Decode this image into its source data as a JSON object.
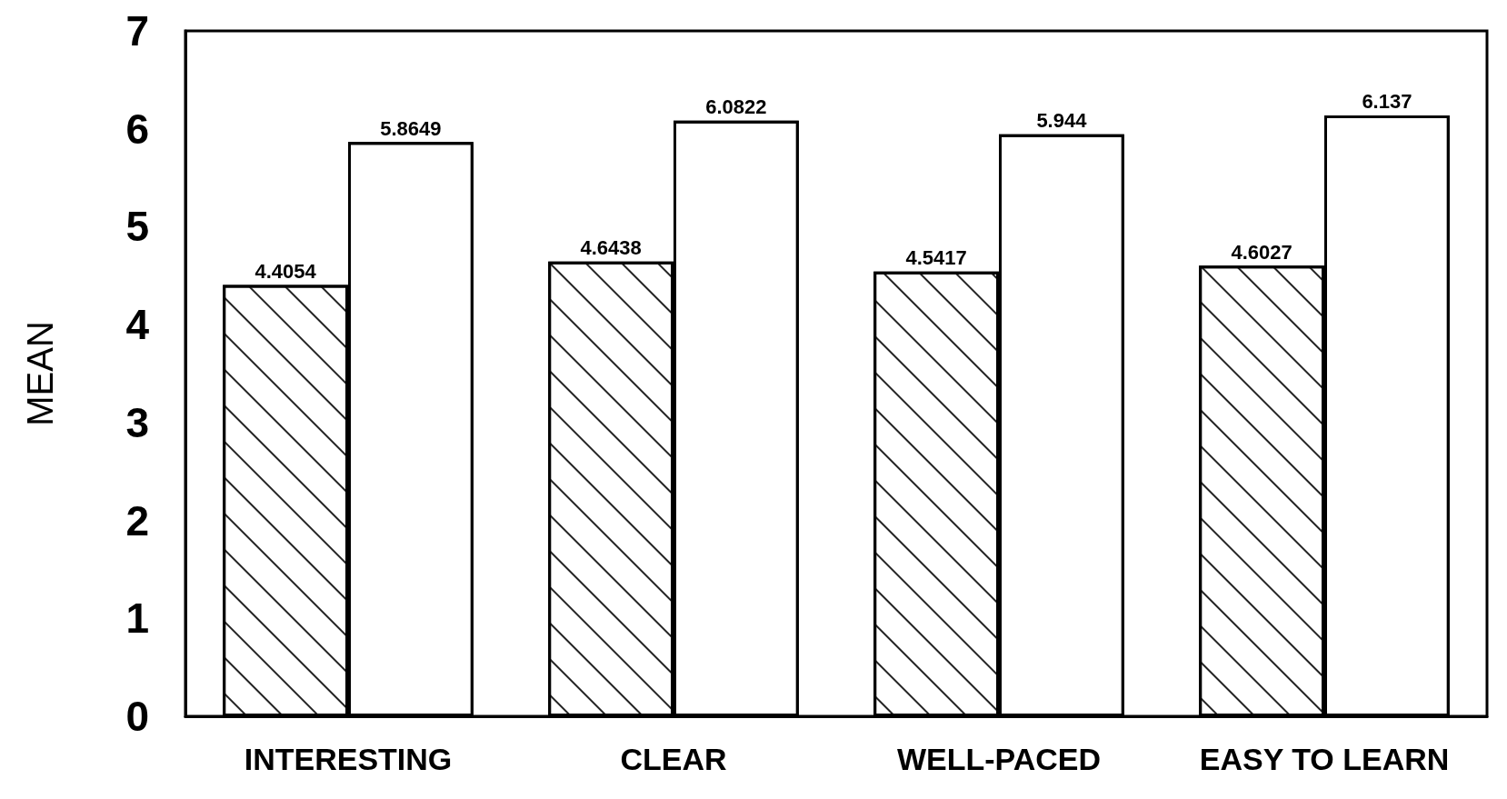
{
  "chart_data": {
    "type": "bar",
    "ylabel": "MEAN",
    "categories": [
      "INTERESTING",
      "CLEAR",
      "WELL-PACED",
      "EASY TO LEARN"
    ],
    "series": [
      {
        "color": "#ffffff",
        "values": [
          4.4054,
          4.6438,
          4.5417,
          4.6027
        ]
      },
      {
        "color": "#ffffff",
        "values": [
          5.8649,
          6.0822,
          5.944,
          6.137
        ]
      }
    ],
    "ylim": [
      0,
      7
    ],
    "yticks": [
      0,
      1,
      2,
      3,
      4,
      5,
      6,
      7
    ],
    "grid": false,
    "data_labels": true
  }
}
